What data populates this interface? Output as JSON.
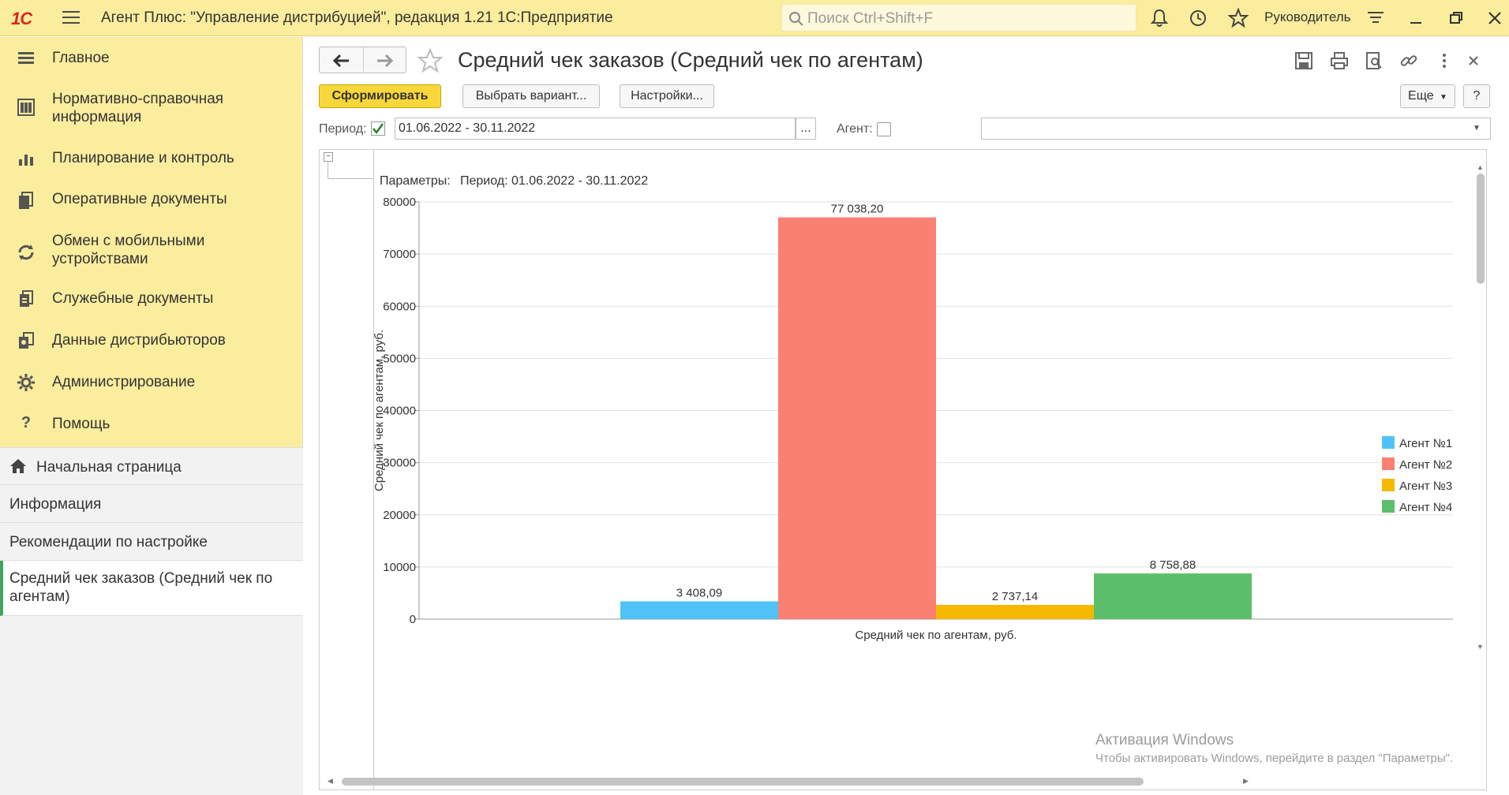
{
  "topbar": {
    "logo": "1С",
    "title": "Агент Плюс: \"Управление дистрибуцией\", редакция 1.21 1С:Предприятие",
    "search_placeholder": "Поиск Ctrl+Shift+F",
    "user": "Руководитель"
  },
  "sidebar": {
    "sections": [
      {
        "label": "Главное",
        "icon": "list-icon"
      },
      {
        "label": "Нормативно-справочная информация",
        "icon": "catalog-icon"
      },
      {
        "label": "Планирование и контроль",
        "icon": "bar-chart-icon"
      },
      {
        "label": "Оперативные документы",
        "icon": "documents-icon"
      },
      {
        "label": "Обмен с мобильными устройствами",
        "icon": "sync-icon"
      },
      {
        "label": "Служебные документы",
        "icon": "service-documents-icon"
      },
      {
        "label": "Данные дистрибьюторов",
        "icon": "distributor-data-icon"
      },
      {
        "label": "Администрирование",
        "icon": "gear-icon"
      },
      {
        "label": "Помощь",
        "icon": "help-icon"
      }
    ],
    "links": [
      {
        "label": "Начальная страница",
        "icon": "home-icon"
      },
      {
        "label": "Информация"
      },
      {
        "label": "Рекомендации по настройке"
      },
      {
        "label": "Средний чек заказов (Средний чек по агентам)",
        "active": true
      }
    ]
  },
  "main": {
    "title": "Средний чек заказов (Средний чек по агентам)",
    "toolbar": {
      "generate": "Сформировать",
      "choose_variant": "Выбрать вариант...",
      "settings": "Настройки...",
      "more": "Еще",
      "help": "?"
    },
    "filters": {
      "period_label": "Период:",
      "period_checked": true,
      "period_value": "01.06.2022 - 30.11.2022",
      "period_btn": "...",
      "agent_label": "Агент:",
      "agent_checked": false,
      "agent_value": ""
    },
    "report": {
      "params_label": "Параметры:",
      "params_value": "Период: 01.06.2022 - 30.11.2022"
    },
    "watermark": {
      "line1": "Активация Windows",
      "line2": "Чтобы активировать Windows, перейдите в раздел \"Параметры\"."
    }
  },
  "chart_data": {
    "type": "bar",
    "categories": [
      "Средний чек по агентам, руб."
    ],
    "series": [
      {
        "name": "Агент №1",
        "value": 3408.09,
        "label": "3 408,09",
        "color": "#4fc3f7"
      },
      {
        "name": "Агент №2",
        "value": 77038.2,
        "label": "77 038,20",
        "color": "#fa8072"
      },
      {
        "name": "Агент №3",
        "value": 2737.14,
        "label": "2 737,14",
        "color": "#f5b800"
      },
      {
        "name": "Агент №4",
        "value": 8758.88,
        "label": "8 758,88",
        "color": "#5cbf6b"
      }
    ],
    "xlabel": "Средний чек по агентам, руб.",
    "ylabel": "Средний чек по агентам, руб.",
    "ylim": [
      0,
      80000
    ],
    "yticks": [
      "0",
      "10000",
      "20000",
      "30000",
      "40000",
      "50000",
      "60000",
      "70000",
      "80000"
    ],
    "grid": true,
    "legend": "right"
  }
}
